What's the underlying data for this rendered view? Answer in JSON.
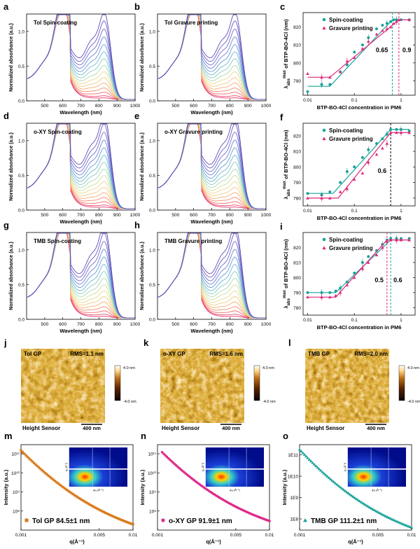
{
  "figure": {
    "absorption_panels": [
      {
        "letter": "a",
        "title": "Tol Spin-coating"
      },
      {
        "letter": "b",
        "title": "Tol Gravure printing"
      },
      {
        "letter": "d",
        "title": "o-XY Spin-coating"
      },
      {
        "letter": "e",
        "title": "o-XY Gravure printing"
      },
      {
        "letter": "g",
        "title": "TMB Spin-coating"
      },
      {
        "letter": "h",
        "title": "TMB Gravure printing"
      }
    ],
    "absorption_axes": {
      "ylabel": "Normalized absorbance (a.u.)",
      "xlabel": "Wavelength (nm)",
      "xticks": [
        "500",
        "600",
        "700",
        "800",
        "900",
        "1000"
      ],
      "yticks": [
        "0.0",
        "0.5",
        "1.0"
      ]
    },
    "shift_panels": [
      {
        "letter": "c",
        "thresholds": [
          {
            "label": "0.65",
            "x": 0.65,
            "color": "#1aa39a"
          },
          {
            "label": "0.9",
            "x": 0.9,
            "color": "#e0287b"
          }
        ]
      },
      {
        "letter": "f",
        "thresholds": [
          {
            "label": "0.6",
            "x": 0.6,
            "color": "#000000"
          }
        ]
      },
      {
        "letter": "i",
        "thresholds": [
          {
            "label": "0.5",
            "x": 0.5,
            "color": "#e0287b"
          },
          {
            "label": "0.6",
            "x": 0.6,
            "color": "#1aa39a"
          }
        ]
      }
    ],
    "shift_axes": {
      "xlabel": "BTP-BO-4Cl concentration in PM6",
      "ylabel": "λabs max of BTP-BO-4Cl (nm)",
      "ylabel_prefix": "λ",
      "ylabel_sub": "abs",
      "ylabel_sup": "max",
      "ylabel_rest": " of BTP-BO-4Cl (nm)",
      "xticks": [
        "0.01",
        "0.1",
        "1"
      ],
      "yticks_c": [
        "790",
        "800",
        "810",
        "820"
      ],
      "yticks_f": [
        "780",
        "790",
        "800",
        "810",
        "820"
      ],
      "yticks_i": [
        "780",
        "790",
        "800",
        "810",
        "820"
      ],
      "legend_spin": "Spin-coating",
      "legend_gravure": "Gravure printing"
    },
    "afm_panels": [
      {
        "letter": "j",
        "label": "Tol GP",
        "rms": "RMS=1.1 nm"
      },
      {
        "letter": "k",
        "label": "o-XY GP",
        "rms": "RMS=1.6 nm"
      },
      {
        "letter": "l",
        "label": "TMB GP",
        "rms": "RMS=2.0 nm"
      }
    ],
    "afm_common": {
      "scale_max": "4.0 nm",
      "scale_min": "-4.0 nm",
      "sensor": "Height Sensor",
      "scalebar": "400 nm"
    },
    "saxs_panels": [
      {
        "letter": "m",
        "legend": "Tol GP  84.5±1 nm",
        "color": "#d97a1c",
        "marker": "square"
      },
      {
        "letter": "n",
        "legend": "o-XY  GP  91.9±1 nm",
        "color": "#df2b8a",
        "marker": "circle"
      },
      {
        "letter": "o",
        "legend": "TMB  GP  111.2±1 nm",
        "color": "#1aa39a",
        "marker": "triangle"
      }
    ],
    "saxs_axes": {
      "ylabel": "Intensity (a.u.)",
      "xlabel": "q(Å⁻¹)",
      "xticks": [
        "0.001",
        "0.005",
        "0.01"
      ],
      "yticks_m": [
        "10¹¹",
        "10¹⁰",
        "10⁹",
        "10⁸"
      ],
      "yticks_n": [
        "10¹¹",
        "10¹⁰",
        "10⁹",
        "10⁸"
      ],
      "yticks_o": [
        "1E11",
        "1E10",
        "1E9",
        "1E8"
      ],
      "inset_ylabel": "q꜀ (Å⁻¹)",
      "inset_xlabel": "qₓᵧ (Å⁻¹)"
    }
  },
  "chart_data": [
    {
      "type": "line",
      "id": "a",
      "title": "Tol Spin-coating",
      "xlabel": "Wavelength (nm)",
      "ylabel": "Normalized absorbance (a.u.)",
      "xlim": [
        400,
        1000
      ],
      "ylim": [
        0,
        1.25
      ],
      "peaks": {
        "pm6_0_0_nm": 620,
        "pm6_0_1_nm": 580,
        "acceptor_peak_nm": 835,
        "acceptor_shoulder_nm": 760
      },
      "series_count": 15,
      "acceptor_peak_range": [
        0.02,
        1.12
      ]
    },
    {
      "type": "line",
      "id": "b",
      "title": "Tol Gravure printing",
      "xlabel": "Wavelength (nm)",
      "ylabel": "Normalized absorbance (a.u.)",
      "xlim": [
        400,
        1000
      ],
      "ylim": [
        0,
        1.25
      ],
      "peaks": {
        "pm6_0_0_nm": 620,
        "pm6_0_1_nm": 580,
        "acceptor_peak_nm": 835,
        "acceptor_shoulder_nm": 760
      },
      "series_count": 15,
      "acceptor_peak_range": [
        0.02,
        1.12
      ]
    },
    {
      "type": "scatter",
      "id": "c",
      "xlabel": "BTP-BO-4Cl concentration in PM6",
      "ylabel": "λabs max of BTP-BO-4Cl (nm)",
      "xscale": "log",
      "xlim": [
        0.008,
        2
      ],
      "ylim": [
        782,
        828
      ],
      "series": [
        {
          "name": "Spin-coating",
          "color": "#1aa39a",
          "x": [
            0.01,
            0.02,
            0.03,
            0.05,
            0.07,
            0.1,
            0.15,
            0.2,
            0.3,
            0.4,
            0.5,
            0.6,
            0.7,
            0.8,
            1.0,
            1.5
          ],
          "y": [
            784,
            788,
            788,
            795,
            799,
            806,
            810,
            814,
            819,
            821,
            822,
            823,
            824,
            824,
            824,
            824
          ],
          "fit": {
            "x": [
              0.01,
              0.03,
              0.65,
              1.5
            ],
            "y": [
              787,
              787,
              824,
              824
            ]
          }
        },
        {
          "name": "Gravure printing",
          "color": "#e0287b",
          "x": [
            0.01,
            0.02,
            0.03,
            0.05,
            0.07,
            0.1,
            0.15,
            0.2,
            0.3,
            0.4,
            0.5,
            0.6,
            0.7,
            0.8,
            0.9,
            1.5
          ],
          "y": [
            794,
            792,
            792,
            795,
            801,
            803,
            808,
            812,
            816,
            818,
            819,
            820,
            822,
            823,
            824,
            824
          ],
          "fit": {
            "x": [
              0.01,
              0.03,
              0.9,
              1.5
            ],
            "y": [
              792,
              792,
              824,
              824
            ]
          }
        }
      ],
      "thresholds": [
        0.65,
        0.9
      ]
    },
    {
      "type": "line",
      "id": "d",
      "title": "o-XY Spin-coating",
      "xlim": [
        400,
        1000
      ],
      "ylim": [
        0,
        1.25
      ],
      "series_count": 16,
      "acceptor_peak_range": [
        0.02,
        1.2
      ]
    },
    {
      "type": "line",
      "id": "e",
      "title": "o-XY Gravure printing",
      "xlim": [
        400,
        1000
      ],
      "ylim": [
        0,
        1.25
      ],
      "series_count": 16,
      "acceptor_peak_range": [
        0.02,
        1.2
      ]
    },
    {
      "type": "scatter",
      "id": "f",
      "xscale": "log",
      "xlim": [
        0.008,
        2
      ],
      "ylim": [
        775,
        828
      ],
      "series": [
        {
          "name": "Spin-coating",
          "color": "#1aa39a",
          "x": [
            0.01,
            0.02,
            0.03,
            0.05,
            0.07,
            0.1,
            0.15,
            0.2,
            0.3,
            0.4,
            0.5,
            0.6,
            0.8,
            1.0,
            1.5
          ],
          "y": [
            783,
            782,
            784,
            790,
            797,
            800,
            806,
            811,
            815,
            818,
            821,
            824,
            824,
            824,
            823
          ],
          "fit": {
            "x": [
              0.01,
              0.035,
              0.6,
              1.5
            ],
            "y": [
              783,
              783,
              824,
              824
            ]
          }
        },
        {
          "name": "Gravure printing",
          "color": "#e0287b",
          "x": [
            0.01,
            0.02,
            0.03,
            0.05,
            0.07,
            0.1,
            0.15,
            0.2,
            0.3,
            0.4,
            0.5,
            0.6,
            0.8,
            1.0,
            1.5
          ],
          "y": [
            780,
            780,
            780,
            784,
            786,
            792,
            796,
            803,
            808,
            812,
            815,
            822,
            822,
            822,
            822
          ],
          "fit": {
            "x": [
              0.01,
              0.045,
              0.6,
              1.5
            ],
            "y": [
              780,
              780,
              822,
              822
            ]
          }
        }
      ],
      "thresholds": [
        0.6
      ]
    },
    {
      "type": "line",
      "id": "g",
      "title": "TMB Spin-coating",
      "xlim": [
        400,
        1000
      ],
      "ylim": [
        0,
        1.25
      ],
      "series_count": 16,
      "acceptor_peak_range": [
        0.02,
        1.2
      ]
    },
    {
      "type": "line",
      "id": "h",
      "title": "TMB Gravure printing",
      "xlim": [
        400,
        1000
      ],
      "ylim": [
        0,
        1.25
      ],
      "series_count": 16,
      "acceptor_peak_range": [
        0.02,
        1.2
      ]
    },
    {
      "type": "scatter",
      "id": "i",
      "xscale": "log",
      "xlim": [
        0.008,
        2
      ],
      "ylim": [
        775,
        830
      ],
      "series": [
        {
          "name": "Spin-coating",
          "color": "#1aa39a",
          "x": [
            0.01,
            0.02,
            0.03,
            0.04,
            0.05,
            0.07,
            0.1,
            0.15,
            0.2,
            0.3,
            0.4,
            0.5,
            0.6,
            0.8,
            1.0,
            1.5
          ],
          "y": [
            790,
            790,
            790,
            791,
            793,
            797,
            803,
            810,
            814,
            818,
            822,
            825,
            826,
            826,
            826,
            826
          ],
          "fit": {
            "x": [
              0.01,
              0.04,
              0.6,
              1.5
            ],
            "y": [
              790,
              790,
              825,
              825
            ]
          }
        },
        {
          "name": "Gravure printing",
          "color": "#e0287b",
          "x": [
            0.01,
            0.02,
            0.03,
            0.04,
            0.05,
            0.07,
            0.1,
            0.15,
            0.2,
            0.3,
            0.4,
            0.5,
            0.6,
            0.8,
            1.0,
            1.5
          ],
          "y": [
            787,
            787,
            787,
            788,
            790,
            795,
            800,
            806,
            810,
            815,
            820,
            824,
            825,
            825,
            825,
            825
          ],
          "fit": {
            "x": [
              0.01,
              0.04,
              0.5,
              1.5
            ],
            "y": [
              787,
              787,
              825,
              825
            ]
          }
        }
      ],
      "thresholds": [
        0.5,
        0.6
      ]
    },
    {
      "type": "scatter",
      "id": "m",
      "xscale": "log",
      "yscale": "log",
      "xlim": [
        0.001,
        0.01
      ],
      "ylim": [
        10000000.0,
        300000000000.0
      ],
      "series": [
        {
          "name": "Tol GP",
          "x_range": [
            0.001,
            0.01
          ],
          "y_start": 150000000000.0,
          "y_end": 20000000.0
        }
      ],
      "annotation": "Tol GP  84.5±1 nm"
    },
    {
      "type": "scatter",
      "id": "n",
      "xscale": "log",
      "yscale": "log",
      "xlim": [
        0.001,
        0.01
      ],
      "ylim": [
        10000000.0,
        300000000000.0
      ],
      "series": [
        {
          "name": "o-XY GP",
          "x_range": [
            0.0011,
            0.01
          ],
          "y_start": 120000000000.0,
          "y_end": 30000000.0
        }
      ],
      "annotation": "o-XY  GP  91.9±1 nm"
    },
    {
      "type": "scatter",
      "id": "o",
      "xscale": "log",
      "yscale": "log",
      "xlim": [
        0.001,
        0.01
      ],
      "ylim": [
        30000000.0,
        300000000000.0
      ],
      "series": [
        {
          "name": "TMB GP",
          "x_range": [
            0.001,
            0.01
          ],
          "y_start": 180000000000.0,
          "y_end": 40000000.0
        }
      ],
      "annotation": "TMB  GP  111.2±1 nm"
    }
  ]
}
